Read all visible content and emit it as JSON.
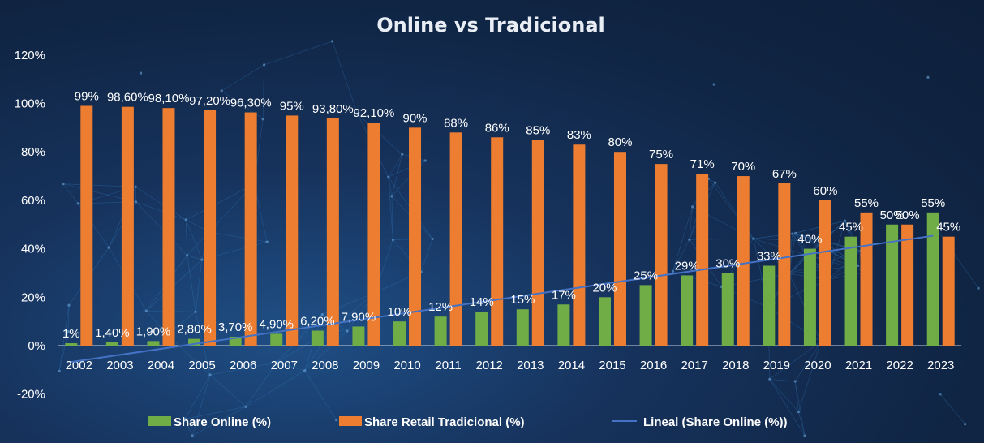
{
  "colors": {
    "online": "#70ad47",
    "traditional": "#ed7d31",
    "trend": "#4472c4",
    "text": "#ffffff"
  },
  "chart_data": {
    "type": "bar",
    "title": "Online vs Tradicional",
    "categories": [
      "2002",
      "2003",
      "2004",
      "2005",
      "2006",
      "2007",
      "2008",
      "2009",
      "2010",
      "2011",
      "2012",
      "2013",
      "2014",
      "2015",
      "2016",
      "2017",
      "2018",
      "2019",
      "2020",
      "2021",
      "2022",
      "2023"
    ],
    "series": [
      {
        "name": "Share Online (%)",
        "values": [
          1,
          1.4,
          1.9,
          2.8,
          3.7,
          4.9,
          6.2,
          7.9,
          10,
          12,
          14,
          15,
          17,
          20,
          25,
          29,
          30,
          33,
          40,
          45,
          50,
          55
        ],
        "labels": [
          "1%",
          "1,40%",
          "1,90%",
          "2,80%",
          "3,70%",
          "4,90%",
          "6,20%",
          "7,90%",
          "10%",
          "12%",
          "14%",
          "15%",
          "17%",
          "20%",
          "25%",
          "29%",
          "30%",
          "33%",
          "40%",
          "45%",
          "50%",
          "55%"
        ]
      },
      {
        "name": "Share Retail Tradicional (%)",
        "values": [
          99,
          98.6,
          98.1,
          97.2,
          96.3,
          95,
          93.8,
          92.1,
          90,
          88,
          86,
          85,
          83,
          80,
          75,
          71,
          70,
          67,
          60,
          55,
          50,
          45
        ],
        "labels": [
          "99%",
          "98,60%",
          "98,10%",
          "97,20%",
          "96,30%",
          "95%",
          "93,80%",
          "92,10%",
          "90%",
          "88%",
          "86%",
          "85%",
          "83%",
          "80%",
          "75%",
          "71%",
          "70%",
          "67%",
          "60%",
          "55%",
          "50%",
          "45%"
        ]
      }
    ],
    "trendline": {
      "name": "Lineal (Share Online (%))",
      "of_series": "Share Online (%)",
      "type": "linear"
    },
    "ylim": [
      -20,
      120
    ],
    "yticks": [
      -20,
      0,
      20,
      40,
      60,
      80,
      100,
      120
    ],
    "ytick_labels": [
      "-20%",
      "0%",
      "20%",
      "40%",
      "60%",
      "80%",
      "100%",
      "120%"
    ],
    "grid": false,
    "legend": "bottom"
  }
}
